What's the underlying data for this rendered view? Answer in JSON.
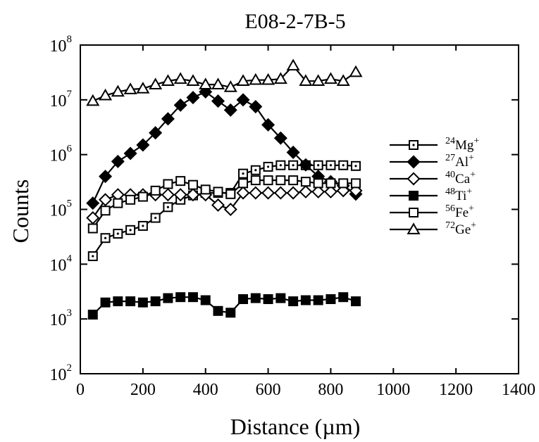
{
  "chart_data": {
    "type": "line",
    "title": "E08-2-7B-5",
    "xlabel": "Distance  (µm)",
    "ylabel": "Counts",
    "xlim": [
      0,
      1400
    ],
    "ylim": [
      100,
      100000000
    ],
    "yscale": "log",
    "grid": false,
    "legend_position": "right",
    "x_ticks": [
      "0",
      "200",
      "400",
      "600",
      "800",
      "1000",
      "1200",
      "1400"
    ],
    "y_ticks": [
      {
        "base": "10",
        "exp": "2"
      },
      {
        "base": "10",
        "exp": "3"
      },
      {
        "base": "10",
        "exp": "4"
      },
      {
        "base": "10",
        "exp": "5"
      },
      {
        "base": "10",
        "exp": "6"
      },
      {
        "base": "10",
        "exp": "7"
      },
      {
        "base": "10",
        "exp": "8"
      }
    ],
    "x": [
      40,
      80,
      120,
      160,
      200,
      240,
      280,
      320,
      360,
      400,
      440,
      480,
      520,
      560,
      600,
      640,
      680,
      720,
      760,
      800,
      840,
      880
    ],
    "series": [
      {
        "name": "24Mg+",
        "iso": "24",
        "sym": "Mg",
        "charge": "+",
        "marker": "square-dot",
        "values": [
          14000,
          30000,
          36000,
          42000,
          50000,
          70000,
          110000,
          150000,
          180000,
          200000,
          200000,
          200000,
          450000,
          520000,
          600000,
          640000,
          640000,
          640000,
          640000,
          640000,
          640000,
          620000
        ]
      },
      {
        "name": "27Al+",
        "iso": "27",
        "sym": "Al",
        "charge": "+",
        "marker": "diamond-filled",
        "values": [
          130000,
          400000,
          750000,
          1050000,
          1500000,
          2500000,
          4500000,
          8000000,
          11000000,
          14000000,
          9500000,
          6500000,
          10000000,
          7500000,
          3500000,
          2000000,
          1100000,
          650000,
          400000,
          320000,
          270000,
          190000
        ]
      },
      {
        "name": "40Ca+",
        "iso": "40",
        "sym": "Ca",
        "charge": "+",
        "marker": "diamond-open",
        "values": [
          70000,
          150000,
          185000,
          185000,
          185000,
          185000,
          185000,
          185000,
          185000,
          185000,
          120000,
          100000,
          200000,
          200000,
          200000,
          200000,
          200000,
          210000,
          210000,
          210000,
          220000,
          220000
        ]
      },
      {
        "name": "48Ti+",
        "iso": "48",
        "sym": "Ti",
        "charge": "+",
        "marker": "square-filled",
        "values": [
          1200,
          2000,
          2100,
          2100,
          2000,
          2100,
          2400,
          2500,
          2500,
          2200,
          1400,
          1300,
          2300,
          2400,
          2300,
          2400,
          2100,
          2200,
          2200,
          2300,
          2500,
          2100
        ]
      },
      {
        "name": "56Fe+",
        "iso": "56",
        "sym": "Fe",
        "charge": "+",
        "marker": "square-open",
        "values": [
          45000,
          95000,
          130000,
          150000,
          170000,
          220000,
          290000,
          330000,
          280000,
          230000,
          210000,
          190000,
          300000,
          340000,
          340000,
          340000,
          340000,
          320000,
          300000,
          300000,
          300000,
          300000
        ]
      },
      {
        "name": "72Ge+",
        "iso": "72",
        "sym": "Ge",
        "charge": "+",
        "marker": "triangle-open",
        "values": [
          9500000,
          12000000,
          14000000,
          15500000,
          16000000,
          19000000,
          22000000,
          24000000,
          22000000,
          19000000,
          19000000,
          17000000,
          22000000,
          23000000,
          23000000,
          24000000,
          42000000,
          22000000,
          22000000,
          24000000,
          22000000,
          32000000
        ]
      }
    ]
  }
}
